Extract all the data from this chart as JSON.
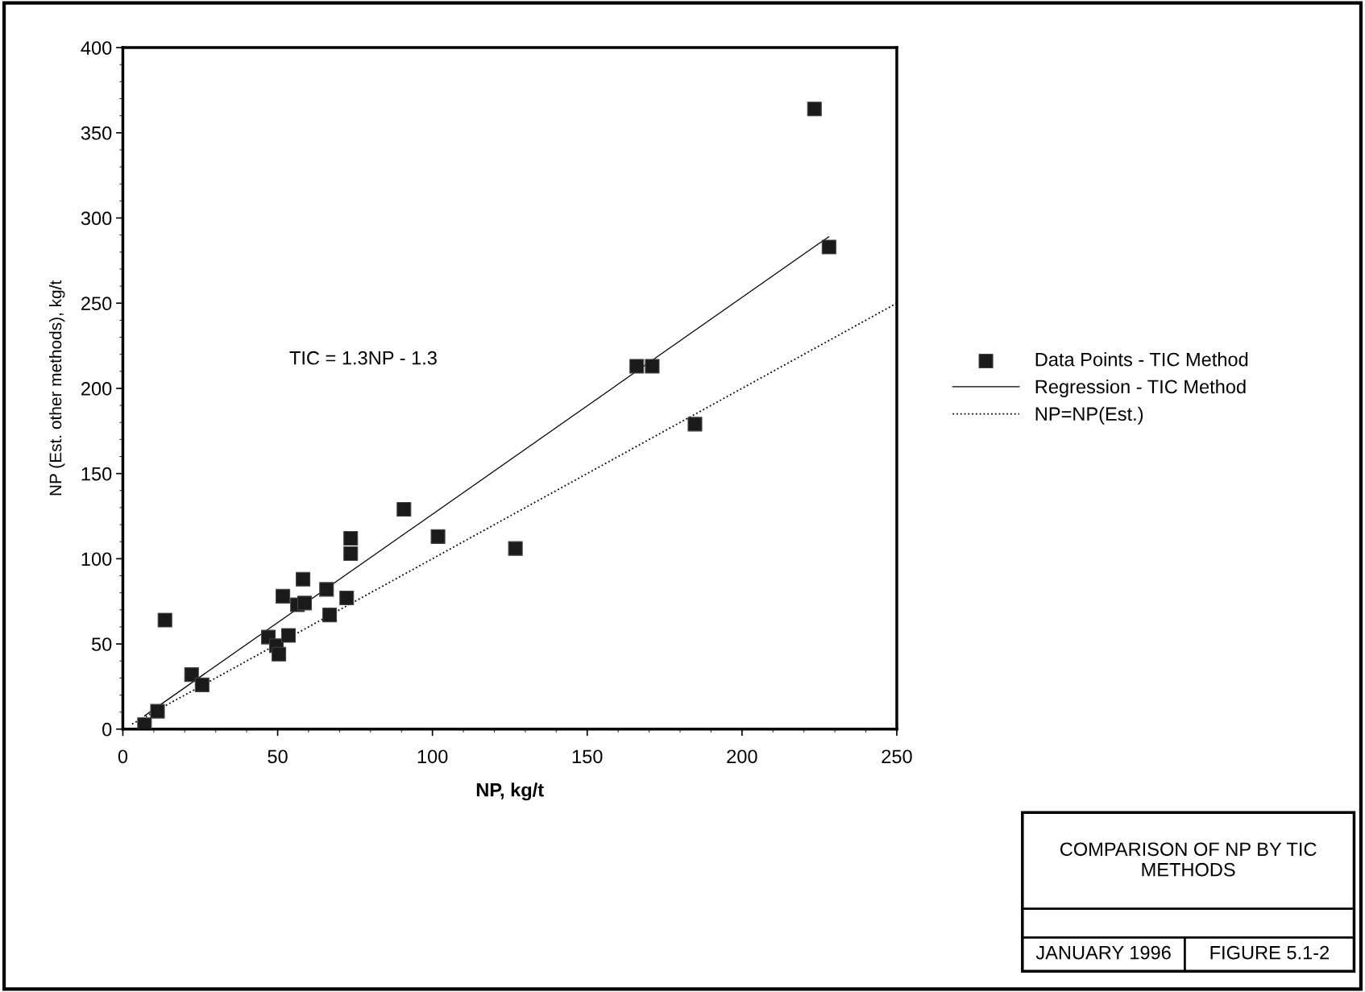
{
  "chart_data": {
    "type": "scatter",
    "title": "COMPARISON OF NP BY TIC METHODS",
    "xlabel": "NP, kg/t",
    "ylabel": "NP (Est. other methods), kg/t",
    "annotations": [
      "TIC = 1.3NP - 1.3",
      "JANUARY 1996",
      "FIGURE 5.1-2"
    ],
    "xlim": [
      0,
      250
    ],
    "ylim": [
      0,
      400
    ],
    "xticks": [
      0,
      50,
      100,
      150,
      200,
      250
    ],
    "yticks": [
      0,
      50,
      100,
      150,
      200,
      250,
      300,
      350,
      400
    ],
    "grid": false,
    "legend": "right",
    "marker": "square",
    "series": [
      {
        "name": "Data Points - TIC Method",
        "color": "#1a1a1a",
        "x": [
          7.0,
          11.2,
          13.6,
          22.2,
          25.6,
          47,
          49.6,
          50.4,
          51.7,
          53.5,
          56.4,
          58.2,
          58.7,
          65.8,
          66.8,
          72.3,
          73.6,
          73.6,
          90.8,
          101.8,
          126.8,
          166,
          171,
          184.8,
          223.4,
          228.1
        ],
        "values": [
          2.6,
          10.5,
          64,
          32,
          26,
          54,
          49,
          44,
          78,
          55,
          73,
          88,
          74,
          82,
          67,
          77,
          112,
          103,
          129,
          113,
          106,
          213,
          213,
          179,
          364,
          283
        ]
      },
      {
        "name": "Regression - TIC Method",
        "type": "line",
        "color": "#000000",
        "line_style": "solid",
        "marker": "none",
        "x": [
          7,
          228
        ],
        "values": [
          7.8,
          289
        ]
      },
      {
        "name": "NP=NP(Est.)",
        "type": "line",
        "color": "#000000",
        "line_style": "dotted",
        "marker": "none",
        "x": [
          3,
          250
        ],
        "values": [
          3,
          250
        ]
      }
    ]
  }
}
